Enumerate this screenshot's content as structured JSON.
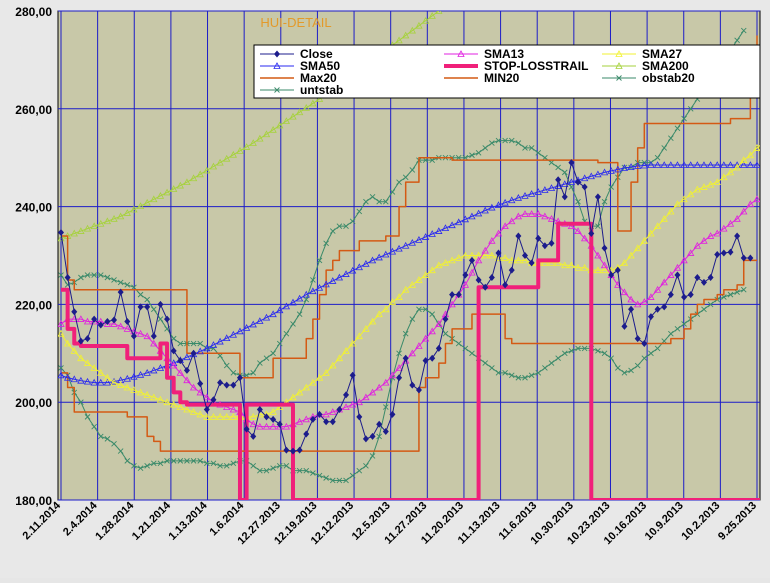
{
  "chart_data": {
    "type": "line",
    "title": "HUI-DETAIL",
    "colors": {
      "plot_bg": "#c8c8a8",
      "grid": "#1c1cc8",
      "title": "#e39a2a"
    },
    "ylim": [
      180,
      280
    ],
    "ytick_labels": [
      "180,00",
      "200,00",
      "220,00",
      "240,00",
      "260,00",
      "280,00"
    ],
    "x_tick_labels": [
      "2.11.2014",
      "2.4.2014",
      "1.28.2014",
      "1.21.2014",
      "1.13.2014",
      "1.6.2014",
      "12.27.2013",
      "12.19.2013",
      "12.12.2013",
      "12.5.2013",
      "11.27.2013",
      "11.20.2013",
      "11.13.2013",
      "11.6.2013",
      "10.30.2013",
      "10.23.2013",
      "10.16.2013",
      "10.9.2013",
      "10.2.2013",
      "9.25.2013"
    ],
    "legend": [
      {
        "name": "Close",
        "color": "#1c1c8c",
        "marker": "diamond",
        "width": 1
      },
      {
        "name": "SMA13",
        "color": "#e020e0",
        "marker": "triangle",
        "width": 1
      },
      {
        "name": "SMA27",
        "color": "#f2f230",
        "marker": "triangle",
        "width": 1
      },
      {
        "name": "SMA50",
        "color": "#2a2af0",
        "marker": "triangle",
        "width": 1
      },
      {
        "name": "STOP-LOSSTRAIL",
        "color": "#f0207a",
        "marker": "none",
        "width": 4
      },
      {
        "name": "SMA200",
        "color": "#a6d23c",
        "marker": "triangle",
        "width": 1
      },
      {
        "name": "Max20",
        "color": "#d45a14",
        "marker": "none",
        "width": 1.5
      },
      {
        "name": "MIN20",
        "color": "#d45a14",
        "marker": "none",
        "width": 1.5
      },
      {
        "name": "obstab20",
        "color": "#3a8a6a",
        "marker": "x",
        "width": 1
      },
      {
        "name": "untstab",
        "color": "#3a8a6a",
        "marker": "x",
        "width": 1
      }
    ],
    "series": [
      {
        "name": "Close",
        "values": [
          234.7,
          225.5,
          218.5,
          212.5,
          213,
          217,
          215.8,
          216.5,
          216.8,
          222.5,
          216.5,
          213.5,
          219.5,
          219.5,
          213.5,
          220,
          217,
          210.5,
          208.5,
          206.5,
          210,
          203.8,
          198.5,
          200.5,
          204,
          203.5,
          203.5,
          205,
          194.5,
          193,
          198.5,
          197,
          196.5,
          195.5,
          190.2,
          190,
          190.2,
          193.5,
          196.5,
          197.5,
          196,
          196,
          198.5,
          201.5,
          205.5,
          197,
          192.5,
          193,
          195.5,
          194,
          197.5,
          205,
          209,
          203.5,
          202.5,
          208.5,
          209,
          211,
          217,
          222,
          222,
          226,
          229,
          225,
          223.5,
          225.5,
          230.5,
          224,
          227,
          234,
          230,
          228.5,
          233.5,
          232,
          232.5,
          245.5,
          242,
          249,
          245,
          244,
          234.5,
          242,
          231.5,
          226,
          227,
          215.5,
          219,
          213,
          212,
          217.5,
          219,
          219.5,
          222,
          226,
          221.5,
          222,
          225.5,
          224.5,
          225.5,
          230.2,
          230.5,
          230.7,
          234,
          229.5,
          229.5
        ]
      },
      {
        "name": "SMA13",
        "values": [
          216,
          217,
          217,
          217,
          216.5,
          216.5,
          216.5,
          216,
          216,
          215.5,
          215,
          214.5,
          214,
          213.5,
          212,
          210.5,
          209,
          207.5,
          206,
          204.5,
          203,
          202,
          201,
          200,
          199.5,
          199,
          198.5,
          198,
          196.5,
          195.5,
          195,
          195,
          195,
          195,
          195,
          195.5,
          196,
          196.5,
          197,
          197.5,
          197.5,
          198,
          198.5,
          199,
          199.5,
          200,
          201,
          202,
          203,
          204,
          205.5,
          207,
          208.5,
          210,
          211.5,
          213,
          214.5,
          216,
          218,
          220,
          222,
          224,
          226.5,
          229,
          231,
          233,
          234.5,
          236,
          237,
          238,
          238.5,
          238.5,
          238.5,
          238,
          237.5,
          237,
          236.5,
          236,
          235,
          233.5,
          232,
          230,
          228,
          226,
          224,
          222.5,
          221,
          220,
          220.5,
          221.5,
          223,
          224.5,
          226,
          227.5,
          229,
          230.5,
          232,
          233,
          234,
          234.5,
          235.5,
          236.5,
          237.5,
          239,
          240.5,
          241.5
        ]
      },
      {
        "name": "SMA27",
        "values": [
          214,
          212,
          210.5,
          209,
          208,
          207,
          206,
          205,
          204,
          203.5,
          203,
          202.5,
          202,
          201.5,
          201,
          200.5,
          200,
          199.5,
          199,
          198.5,
          198,
          197.5,
          197,
          197,
          197,
          197,
          197,
          197,
          197,
          197,
          197.5,
          197.5,
          198,
          199,
          200,
          201,
          202,
          203,
          204,
          205,
          206,
          207.5,
          209,
          210.5,
          212,
          213.5,
          215,
          216.5,
          218,
          219,
          220.5,
          221.5,
          223,
          224,
          225,
          226,
          227,
          228,
          228.5,
          229,
          229.5,
          230,
          230,
          230,
          230,
          230,
          229.5,
          229.5,
          229,
          229,
          229,
          228.5,
          228.5,
          228.5,
          228.5,
          228.5,
          228,
          228,
          227.5,
          227.5,
          227,
          227,
          227,
          227,
          227.5,
          228.5,
          230,
          231.5,
          233,
          234.5,
          236,
          237.5,
          239,
          240.5,
          241.5,
          242.5,
          243.5,
          244,
          244.5,
          245,
          246,
          247,
          248,
          249.5,
          250.5,
          252,
          253
        ]
      },
      {
        "name": "SMA50",
        "values": [
          205.5,
          205,
          204.7,
          204.4,
          204.2,
          204,
          204,
          204,
          204.2,
          204.5,
          204.8,
          205.2,
          205.6,
          206,
          206.5,
          207,
          207.5,
          208,
          208.6,
          209.2,
          209.8,
          210.4,
          211,
          211.7,
          212.4,
          213.1,
          213.8,
          214.5,
          215.2,
          215.9,
          216.6,
          217.3,
          218,
          218.8,
          219.6,
          220.4,
          221.2,
          222,
          222.7,
          223.4,
          224.1,
          224.8,
          225.5,
          226.2,
          226.9,
          227.6,
          228.3,
          229,
          229.6,
          230.2,
          230.8,
          231.4,
          232,
          232.6,
          233.2,
          233.8,
          234.4,
          235,
          235.6,
          236.2,
          236.8,
          237.4,
          238,
          238.6,
          239.2,
          239.8,
          240.3,
          240.8,
          241.3,
          241.8,
          242.2,
          242.6,
          243,
          243.4,
          243.8,
          244.2,
          244.6,
          245,
          245.4,
          245.8,
          246.2,
          246.6,
          247,
          247.3,
          247.6,
          247.9,
          248.1,
          248.3,
          248.4,
          248.5,
          248.5,
          248.5,
          248.5,
          248.5,
          248.5,
          248.5,
          248.5,
          248.5,
          248.5,
          248.5,
          248.5,
          248.5,
          248.5,
          248.5,
          248.5,
          248.5
        ]
      },
      {
        "name": "STOP-LOSSTRAIL",
        "values": [
          223,
          215,
          212,
          211.5,
          211.5,
          211.5,
          211.5,
          211.5,
          211.5,
          211.5,
          209,
          209,
          209,
          209,
          209,
          212,
          205,
          202,
          200,
          199.5,
          199.5,
          199.5,
          199.5,
          199.5,
          199.5,
          199.5,
          199.5,
          180,
          199.5,
          199.5,
          199.5,
          199.5,
          199.5,
          199.5,
          199.5,
          180,
          180,
          180,
          180,
          180,
          180,
          180,
          180,
          180,
          180,
          180,
          180,
          180,
          180,
          180,
          180,
          180,
          180,
          180,
          180,
          180,
          180,
          180,
          180,
          180,
          180,
          180,
          180,
          223.5,
          223.5,
          223.5,
          223.5,
          223.5,
          223.5,
          223.5,
          223.5,
          223.5,
          229,
          229,
          229,
          236.5,
          236.5,
          236.5,
          236.5,
          236.5,
          180,
          180,
          180,
          180,
          180,
          180,
          180,
          180,
          180,
          180,
          180,
          180,
          180,
          180,
          180,
          180,
          180,
          180,
          180,
          180,
          180,
          180,
          180,
          180,
          180,
          180,
          180
        ]
      },
      {
        "name": "SMA200",
        "values": [
          233.5,
          234,
          234.5,
          235,
          235.5,
          236,
          236.5,
          237,
          237.5,
          238,
          238.7,
          239.4,
          240.1,
          240.8,
          241.5,
          242.2,
          242.9,
          243.6,
          244.3,
          245,
          245.8,
          246.6,
          247.4,
          248.2,
          249,
          249.8,
          250.6,
          251.4,
          252.2,
          253,
          253.9,
          254.8,
          255.7,
          256.6,
          257.5,
          258.4,
          259.3,
          260.2,
          261.1,
          262,
          263,
          264,
          265,
          266,
          267,
          268,
          269,
          270,
          271,
          272,
          273,
          274,
          275,
          276,
          277,
          278,
          279,
          280
        ]
      },
      {
        "name": "Max20",
        "values": [
          234,
          225,
          223,
          223,
          223,
          223,
          223,
          223,
          223,
          223,
          223,
          223,
          223,
          223,
          223,
          223,
          223,
          223,
          223,
          210,
          210,
          210,
          210,
          210,
          210,
          210,
          210,
          205,
          205,
          205,
          205,
          205,
          209,
          209,
          209,
          209,
          209,
          213,
          217,
          222,
          227,
          229,
          231,
          231,
          231,
          233,
          233,
          233,
          233,
          234,
          234,
          240,
          245,
          245,
          250,
          250,
          250,
          250,
          250,
          249.5,
          249.5,
          249.5,
          249.5,
          249.5,
          249.5,
          249.5,
          249.5,
          249.5,
          249.5,
          249.5,
          249.5,
          249.5,
          249.5,
          249.5,
          249.5,
          249.5,
          249.5,
          249.5,
          249.5,
          249.5,
          249.5,
          249,
          249,
          249,
          235,
          235,
          245,
          252,
          257,
          257,
          257,
          257,
          257,
          257,
          257,
          257,
          257,
          257,
          257,
          257,
          257,
          258,
          258,
          258,
          265,
          275
        ]
      },
      {
        "name": "MIN20",
        "values": [
          206,
          203,
          198,
          198,
          198,
          198,
          198,
          198,
          198,
          198,
          197,
          197,
          197,
          193,
          192,
          190,
          190,
          190,
          190,
          190,
          190,
          190,
          190,
          190,
          190,
          190,
          190,
          190,
          190,
          190,
          190,
          190,
          190,
          190,
          190,
          190,
          190,
          190,
          190,
          190,
          190,
          190,
          190,
          190,
          190,
          190,
          190,
          190,
          190,
          190,
          190,
          190,
          190,
          190,
          203,
          205,
          205,
          208,
          212,
          215,
          215,
          215,
          218,
          218,
          218,
          218,
          218,
          213,
          212,
          212,
          212,
          212,
          212,
          212,
          212,
          212,
          212,
          212,
          212,
          212,
          212,
          212,
          212,
          212,
          212,
          212,
          212,
          212,
          212,
          212,
          212,
          212,
          213,
          213,
          215,
          218,
          220,
          221,
          221,
          222,
          223,
          223,
          224,
          229,
          229,
          229
        ]
      },
      {
        "name": "obstab20",
        "values": [
          226,
          224,
          224.5,
          225.5,
          226,
          226,
          226,
          225.5,
          225,
          224.5,
          224,
          223.5,
          222,
          221,
          219,
          217,
          215,
          213,
          212,
          212,
          212,
          212,
          211,
          211,
          209.5,
          207.5,
          206,
          205.5,
          205.5,
          206,
          208,
          209,
          210,
          212,
          214,
          216,
          218,
          221,
          225,
          229,
          232.5,
          235,
          236,
          236,
          237,
          239,
          241,
          242,
          241,
          241,
          243,
          245,
          246,
          247.5,
          249.5,
          249.5,
          249.5,
          250,
          250,
          250,
          250,
          250,
          250.5,
          251,
          252,
          253,
          253.5,
          253.5,
          253.5,
          253,
          252,
          252,
          251,
          250,
          249,
          248,
          247,
          244,
          241,
          237,
          236,
          236,
          241,
          244,
          246,
          248,
          248,
          249,
          249,
          249,
          250,
          252,
          254,
          256,
          258,
          260,
          262,
          264,
          266,
          268,
          270,
          272,
          274,
          276
        ]
      },
      {
        "name": "untstab",
        "values": [
          207,
          205.5,
          202,
          200,
          197,
          195,
          193,
          192.5,
          191.5,
          190,
          188,
          187,
          186.5,
          187,
          187.5,
          187.5,
          188,
          188,
          188,
          188,
          188,
          188,
          187.5,
          187.5,
          187,
          187,
          187.5,
          188,
          188,
          187,
          186,
          186,
          186.5,
          187,
          187,
          186,
          186,
          186,
          185.5,
          185,
          184.5,
          184,
          184,
          184,
          185,
          186,
          187,
          189,
          193,
          199,
          205,
          210,
          214,
          217,
          219,
          219,
          218,
          216,
          214,
          213,
          212,
          211,
          210,
          209,
          208,
          207,
          206,
          206,
          205.5,
          205,
          205,
          205.5,
          206,
          207,
          208,
          209,
          210,
          210.5,
          211,
          211,
          211,
          210.5,
          210,
          209,
          207,
          206,
          206.5,
          207.5,
          209,
          210,
          211,
          212.5,
          214,
          215,
          216,
          217,
          218,
          219,
          220,
          221,
          221.5,
          222,
          222.5,
          223
        ]
      }
    ]
  }
}
